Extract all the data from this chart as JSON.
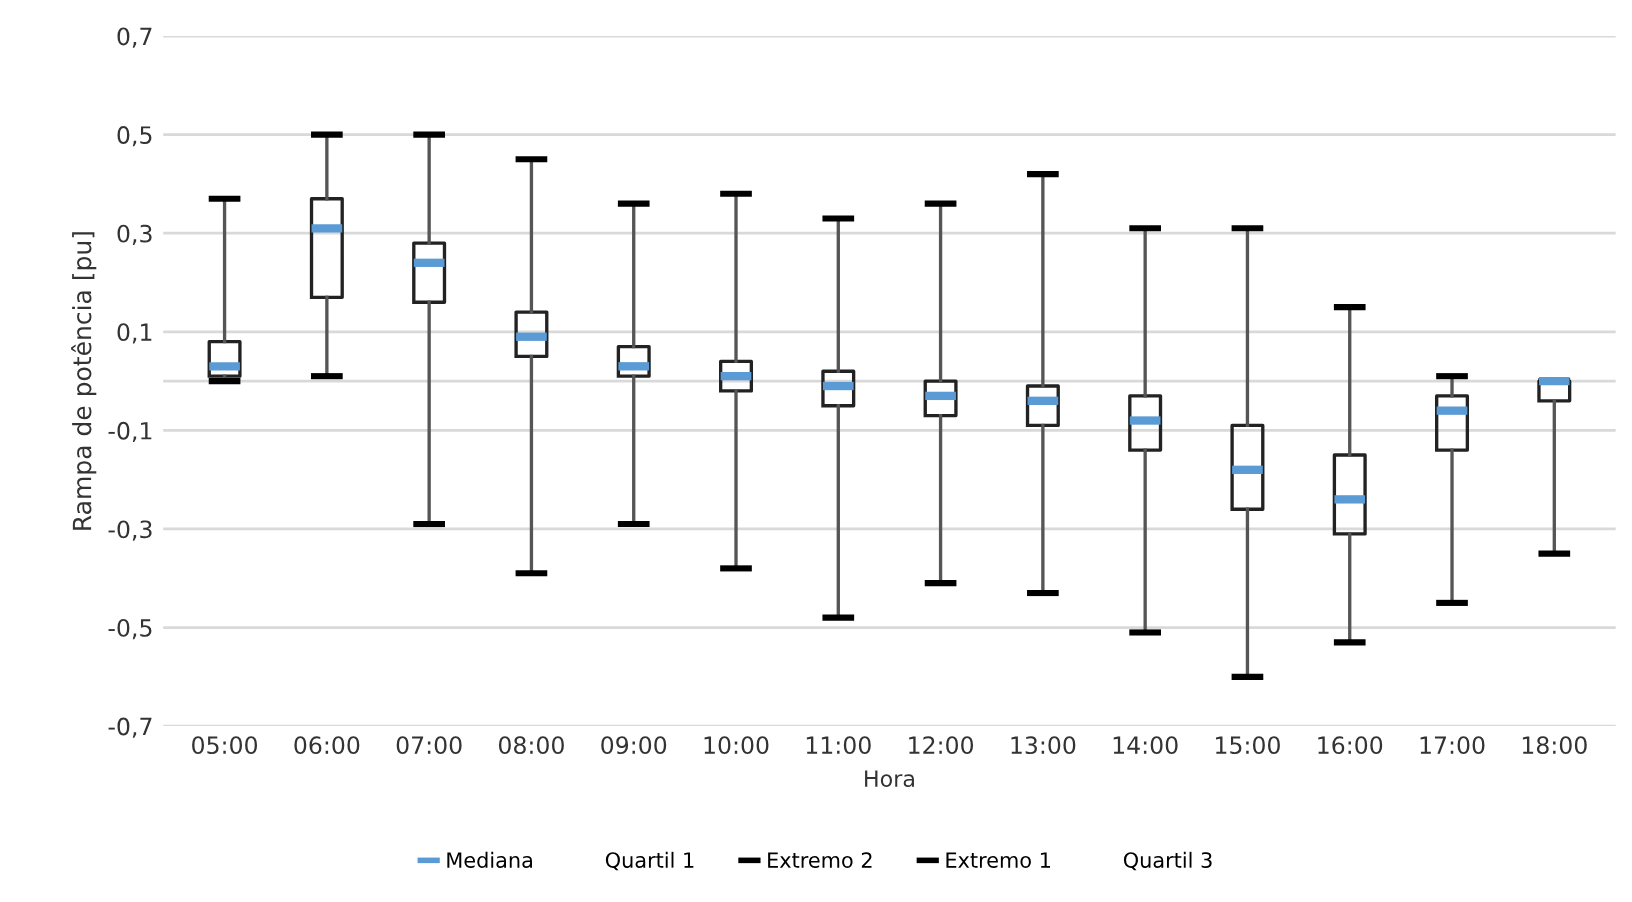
{
  "chart_data": {
    "type": "box",
    "xlabel": "Hora",
    "ylabel": "Rampa de potência [pu]",
    "categories": [
      "05:00",
      "06:00",
      "07:00",
      "08:00",
      "09:00",
      "10:00",
      "11:00",
      "12:00",
      "13:00",
      "14:00",
      "15:00",
      "16:00",
      "17:00",
      "18:00"
    ],
    "boxes": [
      {
        "low": 0.0,
        "q1": 0.01,
        "median": 0.03,
        "q3": 0.08,
        "high": 0.37
      },
      {
        "low": 0.01,
        "q1": 0.17,
        "median": 0.31,
        "q3": 0.37,
        "high": 0.5
      },
      {
        "low": -0.29,
        "q1": 0.16,
        "median": 0.24,
        "q3": 0.28,
        "high": 0.5
      },
      {
        "low": -0.39,
        "q1": 0.05,
        "median": 0.09,
        "q3": 0.14,
        "high": 0.45
      },
      {
        "low": -0.29,
        "q1": 0.01,
        "median": 0.03,
        "q3": 0.07,
        "high": 0.36
      },
      {
        "low": -0.38,
        "q1": -0.02,
        "median": 0.01,
        "q3": 0.04,
        "high": 0.38
      },
      {
        "low": -0.48,
        "q1": -0.05,
        "median": -0.01,
        "q3": 0.02,
        "high": 0.33
      },
      {
        "low": -0.41,
        "q1": -0.07,
        "median": -0.03,
        "q3": 0.0,
        "high": 0.36
      },
      {
        "low": -0.43,
        "q1": -0.09,
        "median": -0.04,
        "q3": -0.01,
        "high": 0.42
      },
      {
        "low": -0.51,
        "q1": -0.14,
        "median": -0.08,
        "q3": -0.03,
        "high": 0.31
      },
      {
        "low": -0.6,
        "q1": -0.26,
        "median": -0.18,
        "q3": -0.09,
        "high": 0.31
      },
      {
        "low": -0.53,
        "q1": -0.31,
        "median": -0.24,
        "q3": -0.15,
        "high": 0.15
      },
      {
        "low": -0.45,
        "q1": -0.14,
        "median": -0.06,
        "q3": -0.03,
        "high": 0.01
      },
      {
        "low": -0.35,
        "q1": -0.04,
        "median": 0.0,
        "q3": 0.0,
        "high": 0.0
      }
    ],
    "annotations": [
      "Mediana",
      "Quartil 1",
      "Extremo 2",
      "Extremo 1",
      "Quartil 3"
    ],
    "ylim": [
      -0.7,
      0.7
    ],
    "yticks": [
      {
        "value": -0.7,
        "label": "-0,7"
      },
      {
        "value": -0.5,
        "label": "-0,5"
      },
      {
        "value": -0.3,
        "label": "-0,3"
      },
      {
        "value": -0.1,
        "label": "-0,1"
      },
      {
        "value": 0.1,
        "label": "0,1"
      },
      {
        "value": 0.3,
        "label": "0,3"
      },
      {
        "value": 0.5,
        "label": "0,5"
      },
      {
        "value": 0.7,
        "label": "0,7"
      }
    ],
    "ref_lines": [
      {
        "axis": "y",
        "value": 0,
        "color": "#d9d9d9"
      }
    ],
    "grid": "y"
  }
}
